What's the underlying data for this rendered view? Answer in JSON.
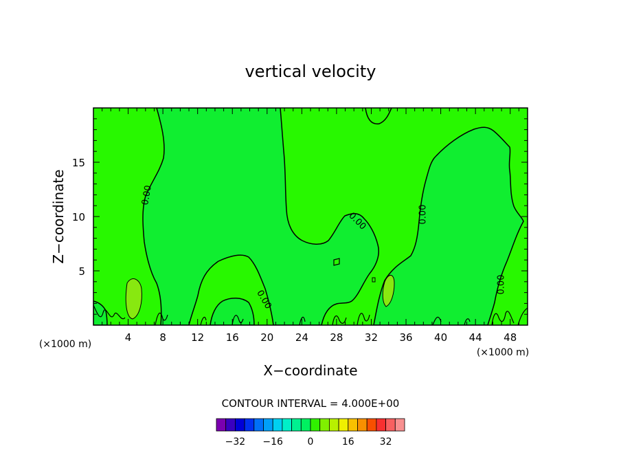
{
  "chart_data": {
    "type": "contour",
    "title": "vertical velocity",
    "xlabel": "X−coordinate",
    "ylabel": "Z−coordinate",
    "x_unit_label": "(×1000 m)",
    "xlim": [
      0,
      50
    ],
    "ylim": [
      0,
      20
    ],
    "x_ticks": [
      4,
      8,
      12,
      16,
      20,
      24,
      28,
      32,
      36,
      40,
      44,
      48
    ],
    "y_ticks": [
      5,
      10,
      15
    ],
    "contour_level_labels": [
      "0.00",
      "0.00",
      "0.00",
      "0.00",
      "0.00",
      "0.00"
    ],
    "contour_interval_text": "CONTOUR INTERVAL = 4.000E+00",
    "colorbar": {
      "tick_labels": [
        "−32",
        "−16",
        "0",
        "16",
        "32"
      ],
      "tick_values": [
        -32,
        -16,
        0,
        16,
        32
      ],
      "levels": [
        -36,
        -32,
        -28,
        -24,
        -20,
        -16,
        -12,
        -8,
        -4,
        0,
        4,
        8,
        12,
        16,
        20,
        24,
        28,
        32,
        36
      ],
      "colors": [
        "#7b00b0",
        "#3a00c0",
        "#0000d8",
        "#0030f0",
        "#0070f8",
        "#00a0f8",
        "#00d0f0",
        "#00f0c8",
        "#00f090",
        "#00f060",
        "#30f000",
        "#80f000",
        "#b8f000",
        "#f0f000",
        "#f8c000",
        "#f89000",
        "#f85000",
        "#f83030",
        "#f86060",
        "#f89090"
      ]
    },
    "field_colors": {
      "background_band": "#28f800",
      "negative_region": "#10ee30",
      "positive_patch": "#88e810"
    }
  }
}
